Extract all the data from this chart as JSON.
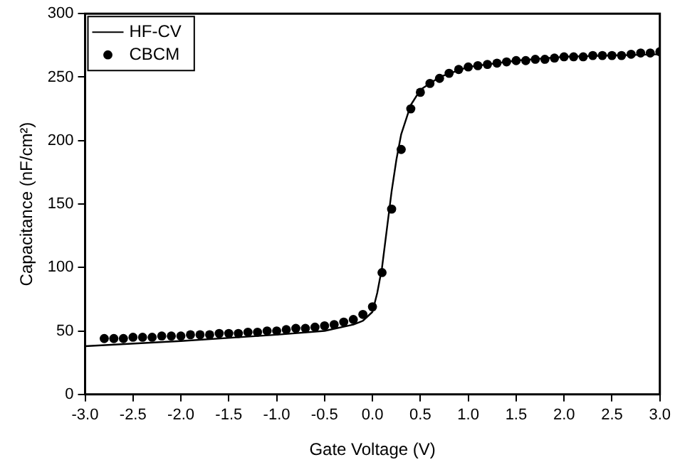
{
  "chart_data": {
    "type": "line",
    "xlabel": "Gate Voltage (V)",
    "ylabel": "Capacitance (nF/cm²)",
    "xlim": [
      -3,
      3
    ],
    "ylim": [
      0,
      300
    ],
    "xticks": [
      {
        "value": -3,
        "label": "-3.0"
      },
      {
        "value": -2.5,
        "label": "-2.5"
      },
      {
        "value": -2,
        "label": "-2.0"
      },
      {
        "value": -1.5,
        "label": "-1.5"
      },
      {
        "value": -1,
        "label": "-1.0"
      },
      {
        "value": -0.5,
        "label": "-0.5"
      },
      {
        "value": 0,
        "label": "0.0"
      },
      {
        "value": 0.5,
        "label": "0.5"
      },
      {
        "value": 1,
        "label": "1.0"
      },
      {
        "value": 1.5,
        "label": "1.5"
      },
      {
        "value": 2,
        "label": "2.0"
      },
      {
        "value": 2.5,
        "label": "2.5"
      },
      {
        "value": 3,
        "label": "3.0"
      }
    ],
    "yticks": [
      0,
      50,
      100,
      150,
      200,
      250,
      300
    ],
    "grid": false,
    "legend": "top left",
    "series": [
      {
        "name": "HF-CV",
        "type": "line",
        "color": "#000000",
        "marker": "none",
        "line_style": "solid",
        "x": [
          -3,
          -2,
          -1,
          -0.5,
          -0.2,
          -0.1,
          0,
          0.05,
          0.1,
          0.15,
          0.2,
          0.25,
          0.3,
          0.4,
          0.5,
          0.7,
          1,
          1.5,
          2,
          3
        ],
        "values": [
          38,
          42,
          47,
          50,
          55,
          58,
          65,
          80,
          100,
          130,
          160,
          185,
          205,
          228,
          240,
          250,
          258,
          263,
          266,
          268
        ]
      },
      {
        "name": "CBCM",
        "type": "scatter",
        "color": "#000000",
        "marker": "circle",
        "x": [
          -2.8,
          -2.7,
          -2.6,
          -2.5,
          -2.4,
          -2.3,
          -2.2,
          -2.1,
          -2.0,
          -1.9,
          -1.8,
          -1.7,
          -1.6,
          -1.5,
          -1.4,
          -1.3,
          -1.2,
          -1.1,
          -1.0,
          -0.9,
          -0.8,
          -0.7,
          -0.6,
          -0.5,
          -0.4,
          -0.3,
          -0.2,
          -0.1,
          0,
          0.1,
          0.2,
          0.3,
          0.4,
          0.5,
          0.6,
          0.7,
          0.8,
          0.9,
          1.0,
          1.1,
          1.2,
          1.3,
          1.4,
          1.5,
          1.6,
          1.7,
          1.8,
          1.9,
          2.0,
          2.1,
          2.2,
          2.3,
          2.4,
          2.5,
          2.6,
          2.7,
          2.8,
          2.9,
          3.0
        ],
        "values": [
          44,
          44,
          44,
          45,
          45,
          45,
          46,
          46,
          46,
          47,
          47,
          47,
          48,
          48,
          48,
          49,
          49,
          50,
          50,
          51,
          52,
          52,
          53,
          54,
          55,
          57,
          59,
          63,
          69,
          96,
          146,
          193,
          225,
          238,
          245,
          249,
          253,
          256,
          258,
          259,
          260,
          261,
          262,
          263,
          263,
          264,
          264,
          265,
          266,
          266,
          266,
          267,
          267,
          267,
          267,
          268,
          269,
          269,
          270
        ]
      }
    ]
  }
}
